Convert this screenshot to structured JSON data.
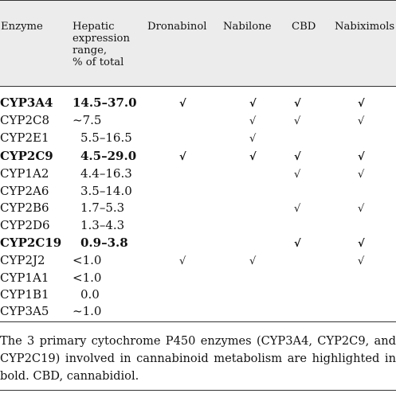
{
  "columns": {
    "enzyme": "Enzyme",
    "range_lines": [
      "Hepatic",
      "expression",
      "range,",
      "% of total"
    ],
    "dronabinol": "Dronabinol",
    "nabilone": "Nabilone",
    "cbd": "CBD",
    "nabiximols": "Nabiximols"
  },
  "check_glyph": "√",
  "rows": [
    {
      "enzyme": "CYP3A4",
      "range": "14.5–37.0",
      "bold": true,
      "indent": false,
      "dronabinol": true,
      "nabilone": true,
      "cbd": true,
      "nabiximols": true
    },
    {
      "enzyme": "CYP2C8",
      "range": "~7.5",
      "bold": false,
      "indent": false,
      "dronabinol": false,
      "nabilone": true,
      "cbd": true,
      "nabiximols": true
    },
    {
      "enzyme": "CYP2E1",
      "range": "5.5–16.5",
      "bold": false,
      "indent": true,
      "dronabinol": false,
      "nabilone": true,
      "cbd": false,
      "nabiximols": false
    },
    {
      "enzyme": "CYP2C9",
      "range": "4.5–29.0",
      "bold": true,
      "indent": true,
      "dronabinol": true,
      "nabilone": true,
      "cbd": true,
      "nabiximols": true
    },
    {
      "enzyme": "CYP1A2",
      "range": "4.4–16.3",
      "bold": false,
      "indent": true,
      "dronabinol": false,
      "nabilone": false,
      "cbd": true,
      "nabiximols": true
    },
    {
      "enzyme": "CYP2A6",
      "range": "3.5–14.0",
      "bold": false,
      "indent": true,
      "dronabinol": false,
      "nabilone": false,
      "cbd": false,
      "nabiximols": false
    },
    {
      "enzyme": "CYP2B6",
      "range": "1.7–5.3",
      "bold": false,
      "indent": true,
      "dronabinol": false,
      "nabilone": false,
      "cbd": true,
      "nabiximols": true
    },
    {
      "enzyme": "CYP2D6",
      "range": "1.3–4.3",
      "bold": false,
      "indent": true,
      "dronabinol": false,
      "nabilone": false,
      "cbd": false,
      "nabiximols": false
    },
    {
      "enzyme": "CYP2C19",
      "range": "0.9–3.8",
      "bold": true,
      "indent": true,
      "dronabinol": false,
      "nabilone": false,
      "cbd": true,
      "nabiximols": true
    },
    {
      "enzyme": "CYP2J2",
      "range": "<1.0",
      "bold": false,
      "indent": false,
      "dronabinol": true,
      "nabilone": true,
      "cbd": false,
      "nabiximols": true
    },
    {
      "enzyme": "CYP1A1",
      "range": "<1.0",
      "bold": false,
      "indent": false,
      "dronabinol": false,
      "nabilone": false,
      "cbd": false,
      "nabiximols": false
    },
    {
      "enzyme": "CYP1B1",
      "range": "0.0",
      "bold": false,
      "indent": true,
      "dronabinol": false,
      "nabilone": false,
      "cbd": false,
      "nabiximols": false
    },
    {
      "enzyme": "CYP3A5",
      "range": "~1.0",
      "bold": false,
      "indent": false,
      "dronabinol": false,
      "nabilone": false,
      "cbd": false,
      "nabiximols": false
    }
  ],
  "footnote": "The 3 primary cytochrome P450 enzymes (CYP3A4, CYP2C9, and CYP2C19) involved in cannabinoid metabolism are highlighted in bold. CBD, cannabidiol."
}
